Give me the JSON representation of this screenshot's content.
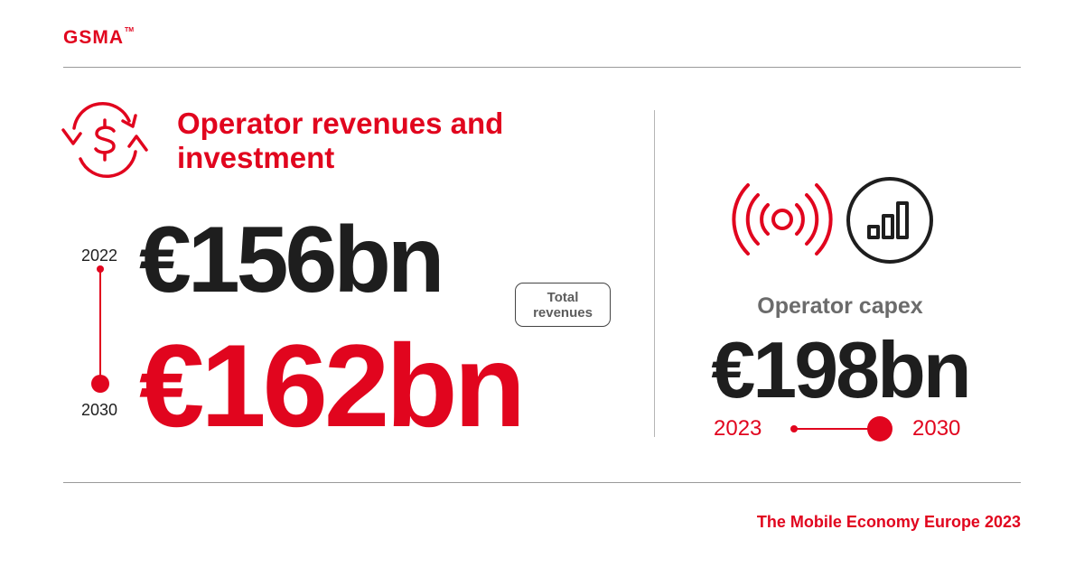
{
  "brand": {
    "logo": "GSMA",
    "tm": "TM",
    "accent": "#e1051e"
  },
  "section": {
    "title": "Operator revenues and investment"
  },
  "revenues": {
    "year_start": "2022",
    "value_start": "€156bn",
    "year_end": "2030",
    "value_end": "€162bn",
    "badge": "Total revenues"
  },
  "capex": {
    "label": "Operator capex",
    "value": "€198bn",
    "year_start": "2023",
    "year_end": "2030"
  },
  "icons": [
    "dollar-cycle-icon",
    "signal-broadcast-icon",
    "signal-bars-icon"
  ],
  "footer": {
    "source": "The Mobile Economy Europe 2023"
  }
}
